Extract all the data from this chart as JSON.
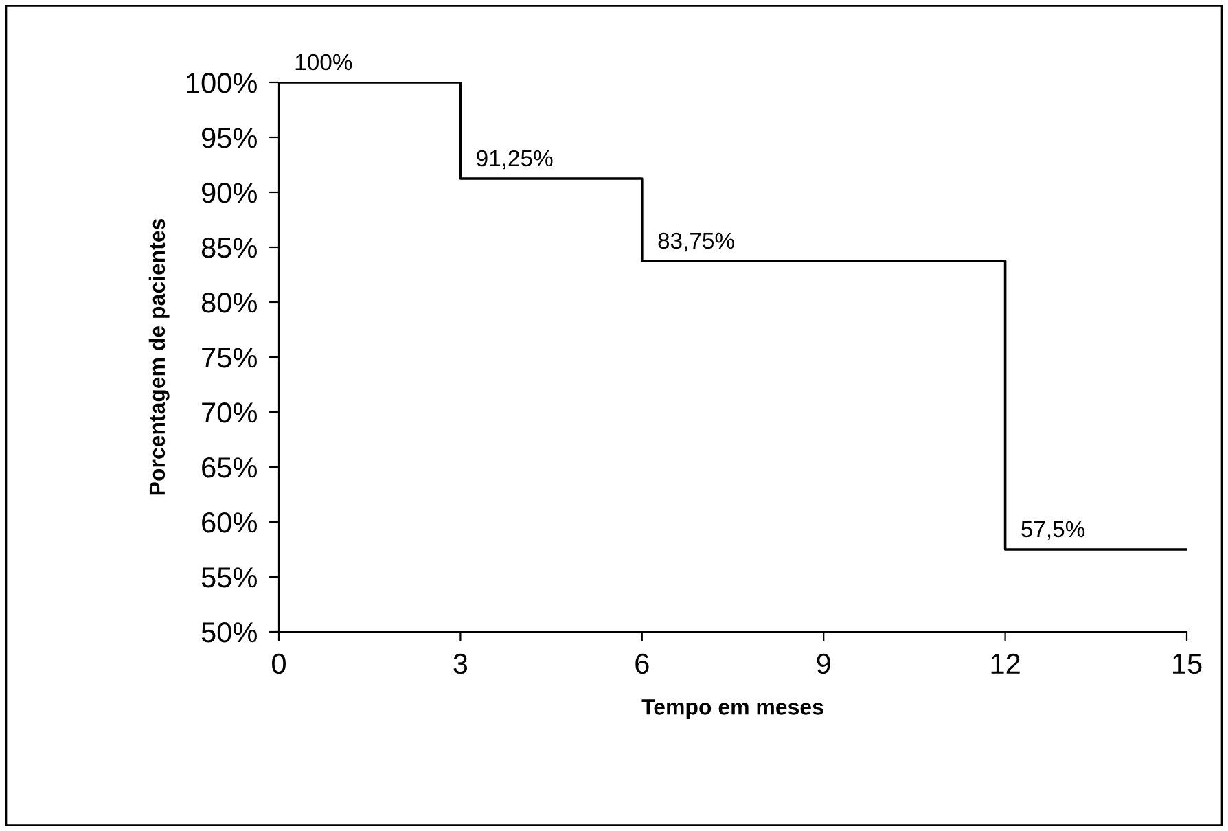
{
  "chart_data": {
    "type": "step",
    "xlabel": "Tempo em meses",
    "ylabel": "Porcentagem de pacientes",
    "x": [
      0,
      3,
      6,
      12,
      15
    ],
    "series": [
      {
        "color": "#000000",
        "values": [
          100,
          91.25,
          83.75,
          57.5,
          57.5
        ],
        "value_labels": [
          "100%",
          "91,25%",
          "83,75%",
          "57,5%",
          null
        ]
      }
    ],
    "xlim": [
      0,
      15
    ],
    "xticks": [
      0,
      3,
      6,
      9,
      12,
      15
    ],
    "ylim": [
      50,
      100
    ],
    "yticks": [
      {
        "value": 50,
        "label": "50%"
      },
      {
        "value": 55,
        "label": "55%"
      },
      {
        "value": 60,
        "label": "60%"
      },
      {
        "value": 65,
        "label": "65%"
      },
      {
        "value": 70,
        "label": "70%"
      },
      {
        "value": 75,
        "label": "75%"
      },
      {
        "value": 80,
        "label": "80%"
      },
      {
        "value": 85,
        "label": "85%"
      },
      {
        "value": 90,
        "label": "90%"
      },
      {
        "value": 95,
        "label": "95%"
      },
      {
        "value": 100,
        "label": "100%"
      }
    ],
    "grid": false,
    "legend": false
  }
}
